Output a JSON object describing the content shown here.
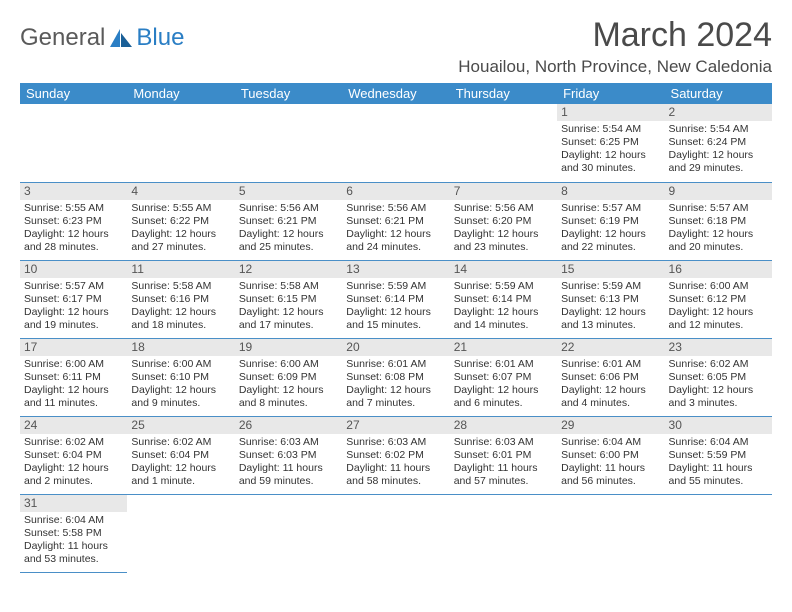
{
  "logo": {
    "word1": "General",
    "word2": "Blue"
  },
  "title": "March 2024",
  "location": "Houailou, North Province, New Caledonia",
  "daynames": [
    "Sunday",
    "Monday",
    "Tuesday",
    "Wednesday",
    "Thursday",
    "Friday",
    "Saturday"
  ],
  "colors": {
    "header_bg": "#3b8bc9",
    "header_fg": "#ffffff",
    "border": "#4a8fc7",
    "daynum_bg": "#e8e8e8",
    "text": "#333333",
    "logo_gray": "#5a5a5a",
    "logo_blue": "#2a7ec4"
  },
  "weeks": [
    [
      null,
      null,
      null,
      null,
      null,
      {
        "n": "1",
        "sr": "Sunrise: 5:54 AM",
        "ss": "Sunset: 6:25 PM",
        "d1": "Daylight: 12 hours",
        "d2": "and 30 minutes."
      },
      {
        "n": "2",
        "sr": "Sunrise: 5:54 AM",
        "ss": "Sunset: 6:24 PM",
        "d1": "Daylight: 12 hours",
        "d2": "and 29 minutes."
      }
    ],
    [
      {
        "n": "3",
        "sr": "Sunrise: 5:55 AM",
        "ss": "Sunset: 6:23 PM",
        "d1": "Daylight: 12 hours",
        "d2": "and 28 minutes."
      },
      {
        "n": "4",
        "sr": "Sunrise: 5:55 AM",
        "ss": "Sunset: 6:22 PM",
        "d1": "Daylight: 12 hours",
        "d2": "and 27 minutes."
      },
      {
        "n": "5",
        "sr": "Sunrise: 5:56 AM",
        "ss": "Sunset: 6:21 PM",
        "d1": "Daylight: 12 hours",
        "d2": "and 25 minutes."
      },
      {
        "n": "6",
        "sr": "Sunrise: 5:56 AM",
        "ss": "Sunset: 6:21 PM",
        "d1": "Daylight: 12 hours",
        "d2": "and 24 minutes."
      },
      {
        "n": "7",
        "sr": "Sunrise: 5:56 AM",
        "ss": "Sunset: 6:20 PM",
        "d1": "Daylight: 12 hours",
        "d2": "and 23 minutes."
      },
      {
        "n": "8",
        "sr": "Sunrise: 5:57 AM",
        "ss": "Sunset: 6:19 PM",
        "d1": "Daylight: 12 hours",
        "d2": "and 22 minutes."
      },
      {
        "n": "9",
        "sr": "Sunrise: 5:57 AM",
        "ss": "Sunset: 6:18 PM",
        "d1": "Daylight: 12 hours",
        "d2": "and 20 minutes."
      }
    ],
    [
      {
        "n": "10",
        "sr": "Sunrise: 5:57 AM",
        "ss": "Sunset: 6:17 PM",
        "d1": "Daylight: 12 hours",
        "d2": "and 19 minutes."
      },
      {
        "n": "11",
        "sr": "Sunrise: 5:58 AM",
        "ss": "Sunset: 6:16 PM",
        "d1": "Daylight: 12 hours",
        "d2": "and 18 minutes."
      },
      {
        "n": "12",
        "sr": "Sunrise: 5:58 AM",
        "ss": "Sunset: 6:15 PM",
        "d1": "Daylight: 12 hours",
        "d2": "and 17 minutes."
      },
      {
        "n": "13",
        "sr": "Sunrise: 5:59 AM",
        "ss": "Sunset: 6:14 PM",
        "d1": "Daylight: 12 hours",
        "d2": "and 15 minutes."
      },
      {
        "n": "14",
        "sr": "Sunrise: 5:59 AM",
        "ss": "Sunset: 6:14 PM",
        "d1": "Daylight: 12 hours",
        "d2": "and 14 minutes."
      },
      {
        "n": "15",
        "sr": "Sunrise: 5:59 AM",
        "ss": "Sunset: 6:13 PM",
        "d1": "Daylight: 12 hours",
        "d2": "and 13 minutes."
      },
      {
        "n": "16",
        "sr": "Sunrise: 6:00 AM",
        "ss": "Sunset: 6:12 PM",
        "d1": "Daylight: 12 hours",
        "d2": "and 12 minutes."
      }
    ],
    [
      {
        "n": "17",
        "sr": "Sunrise: 6:00 AM",
        "ss": "Sunset: 6:11 PM",
        "d1": "Daylight: 12 hours",
        "d2": "and 11 minutes."
      },
      {
        "n": "18",
        "sr": "Sunrise: 6:00 AM",
        "ss": "Sunset: 6:10 PM",
        "d1": "Daylight: 12 hours",
        "d2": "and 9 minutes."
      },
      {
        "n": "19",
        "sr": "Sunrise: 6:00 AM",
        "ss": "Sunset: 6:09 PM",
        "d1": "Daylight: 12 hours",
        "d2": "and 8 minutes."
      },
      {
        "n": "20",
        "sr": "Sunrise: 6:01 AM",
        "ss": "Sunset: 6:08 PM",
        "d1": "Daylight: 12 hours",
        "d2": "and 7 minutes."
      },
      {
        "n": "21",
        "sr": "Sunrise: 6:01 AM",
        "ss": "Sunset: 6:07 PM",
        "d1": "Daylight: 12 hours",
        "d2": "and 6 minutes."
      },
      {
        "n": "22",
        "sr": "Sunrise: 6:01 AM",
        "ss": "Sunset: 6:06 PM",
        "d1": "Daylight: 12 hours",
        "d2": "and 4 minutes."
      },
      {
        "n": "23",
        "sr": "Sunrise: 6:02 AM",
        "ss": "Sunset: 6:05 PM",
        "d1": "Daylight: 12 hours",
        "d2": "and 3 minutes."
      }
    ],
    [
      {
        "n": "24",
        "sr": "Sunrise: 6:02 AM",
        "ss": "Sunset: 6:04 PM",
        "d1": "Daylight: 12 hours",
        "d2": "and 2 minutes."
      },
      {
        "n": "25",
        "sr": "Sunrise: 6:02 AM",
        "ss": "Sunset: 6:04 PM",
        "d1": "Daylight: 12 hours",
        "d2": "and 1 minute."
      },
      {
        "n": "26",
        "sr": "Sunrise: 6:03 AM",
        "ss": "Sunset: 6:03 PM",
        "d1": "Daylight: 11 hours",
        "d2": "and 59 minutes."
      },
      {
        "n": "27",
        "sr": "Sunrise: 6:03 AM",
        "ss": "Sunset: 6:02 PM",
        "d1": "Daylight: 11 hours",
        "d2": "and 58 minutes."
      },
      {
        "n": "28",
        "sr": "Sunrise: 6:03 AM",
        "ss": "Sunset: 6:01 PM",
        "d1": "Daylight: 11 hours",
        "d2": "and 57 minutes."
      },
      {
        "n": "29",
        "sr": "Sunrise: 6:04 AM",
        "ss": "Sunset: 6:00 PM",
        "d1": "Daylight: 11 hours",
        "d2": "and 56 minutes."
      },
      {
        "n": "30",
        "sr": "Sunrise: 6:04 AM",
        "ss": "Sunset: 5:59 PM",
        "d1": "Daylight: 11 hours",
        "d2": "and 55 minutes."
      }
    ],
    [
      {
        "n": "31",
        "sr": "Sunrise: 6:04 AM",
        "ss": "Sunset: 5:58 PM",
        "d1": "Daylight: 11 hours",
        "d2": "and 53 minutes."
      },
      null,
      null,
      null,
      null,
      null,
      null
    ]
  ]
}
